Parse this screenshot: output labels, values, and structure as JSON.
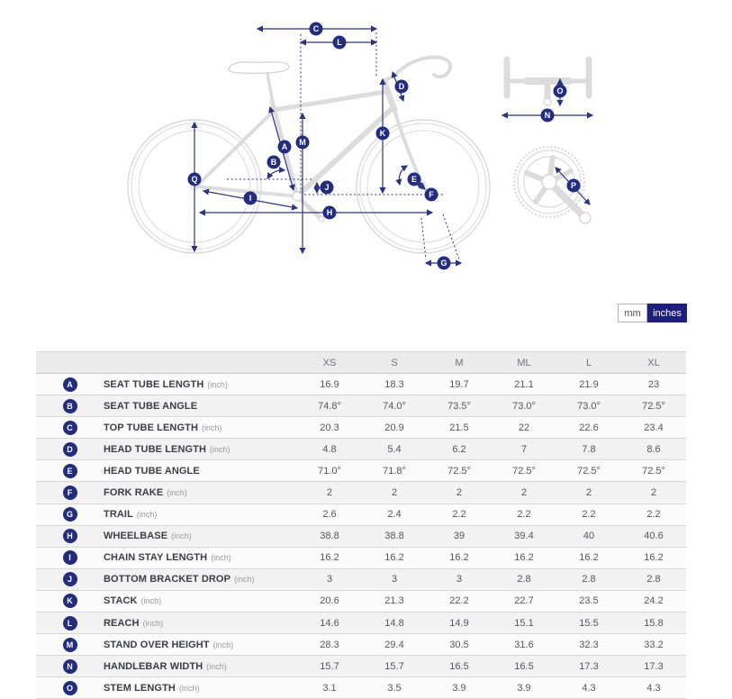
{
  "colors": {
    "accent_navy": "#232c7d",
    "toggle_active_bg": "#1e1e7e",
    "bike_outline_gray": "#d9d9d9",
    "table_header_bg": "#ebebeb",
    "row_bg": "#fbfbfb",
    "row_alt_bg": "#f2f2f2"
  },
  "diagram": {
    "callouts": {
      "A": "A",
      "B": "B",
      "C": "C",
      "D": "D",
      "E": "E",
      "F": "F",
      "G": "G",
      "H": "H",
      "I": "I",
      "J": "J",
      "K": "K",
      "L": "L",
      "M": "M",
      "N": "N",
      "O": "O",
      "P": "P",
      "Q": "Q"
    }
  },
  "unit_toggle": {
    "options": [
      "mm",
      "inches"
    ],
    "active": "inches"
  },
  "table": {
    "columns": [
      "XS",
      "S",
      "M",
      "ML",
      "L",
      "XL"
    ],
    "rows": [
      {
        "letter": "A",
        "label": "SEAT TUBE LENGTH",
        "unit": "(inch)",
        "values": [
          "16.9",
          "18.3",
          "19.7",
          "21.1",
          "21.9",
          "23"
        ]
      },
      {
        "letter": "B",
        "label": "SEAT TUBE ANGLE",
        "unit": "",
        "values": [
          "74.8°",
          "74.0°",
          "73.5°",
          "73.0°",
          "73.0°",
          "72.5°"
        ]
      },
      {
        "letter": "C",
        "label": "TOP TUBE LENGTH",
        "unit": "(inch)",
        "values": [
          "20.3",
          "20.9",
          "21.5",
          "22",
          "22.6",
          "23.4"
        ]
      },
      {
        "letter": "D",
        "label": "HEAD TUBE LENGTH",
        "unit": "(inch)",
        "values": [
          "4.8",
          "5.4",
          "6.2",
          "7",
          "7.8",
          "8.6"
        ]
      },
      {
        "letter": "E",
        "label": "HEAD TUBE ANGLE",
        "unit": "",
        "values": [
          "71.0°",
          "71.8°",
          "72.5°",
          "72.5°",
          "72.5°",
          "72.5°"
        ]
      },
      {
        "letter": "F",
        "label": "FORK RAKE",
        "unit": "(inch)",
        "values": [
          "2",
          "2",
          "2",
          "2",
          "2",
          "2"
        ]
      },
      {
        "letter": "G",
        "label": "TRAIL",
        "unit": "(inch)",
        "values": [
          "2.6",
          "2.4",
          "2.2",
          "2.2",
          "2.2",
          "2.2"
        ]
      },
      {
        "letter": "H",
        "label": "WHEELBASE",
        "unit": "(inch)",
        "values": [
          "38.8",
          "38.8",
          "39",
          "39.4",
          "40",
          "40.6"
        ]
      },
      {
        "letter": "I",
        "label": "CHAIN STAY LENGTH",
        "unit": "(inch)",
        "values": [
          "16.2",
          "16.2",
          "16.2",
          "16.2",
          "16.2",
          "16.2"
        ]
      },
      {
        "letter": "J",
        "label": "BOTTOM BRACKET DROP",
        "unit": "(inch)",
        "values": [
          "3",
          "3",
          "3",
          "2.8",
          "2.8",
          "2.8"
        ]
      },
      {
        "letter": "K",
        "label": "STACK",
        "unit": "(inch)",
        "values": [
          "20.6",
          "21.3",
          "22.2",
          "22.7",
          "23.5",
          "24.2"
        ]
      },
      {
        "letter": "L",
        "label": "REACH",
        "unit": "(inch)",
        "values": [
          "14.6",
          "14.8",
          "14.9",
          "15.1",
          "15.5",
          "15.8"
        ]
      },
      {
        "letter": "M",
        "label": "STAND OVER HEIGHT",
        "unit": "(inch)",
        "values": [
          "28.3",
          "29.4",
          "30.5",
          "31.6",
          "32.3",
          "33.2"
        ]
      },
      {
        "letter": "N",
        "label": "HANDLEBAR WIDTH",
        "unit": "(inch)",
        "values": [
          "15.7",
          "15.7",
          "16.5",
          "16.5",
          "17.3",
          "17.3"
        ]
      },
      {
        "letter": "O",
        "label": "STEM LENGTH",
        "unit": "(inch)",
        "values": [
          "3.1",
          "3.5",
          "3.9",
          "3.9",
          "4.3",
          "4.3"
        ]
      }
    ]
  }
}
